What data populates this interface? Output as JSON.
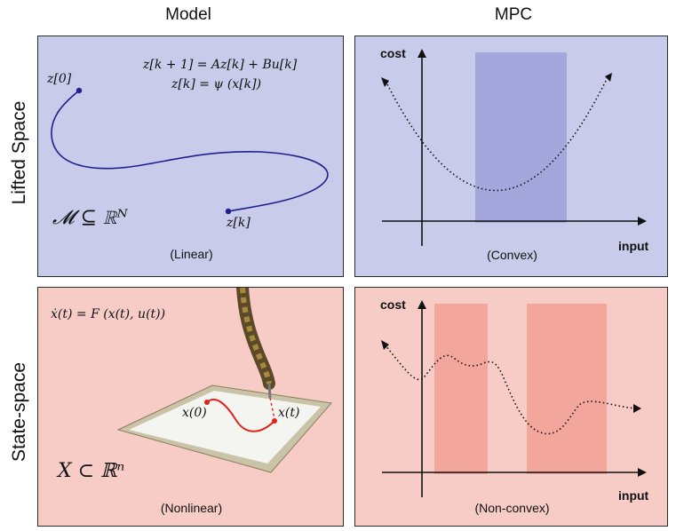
{
  "columns": {
    "model": "Model",
    "mpc": "MPC"
  },
  "rows": {
    "lifted": "Lifted Space",
    "state": "State-space"
  },
  "lifted_model": {
    "eq1": "z[k + 1] = Az[k] + Bu[k]",
    "eq2": "z[k] = ψ (x[k])",
    "start_label": "z[0]",
    "end_label": "z[k]",
    "set": "𝓜 ⊆ ℝᴺ",
    "caption": "(Linear)"
  },
  "lifted_mpc": {
    "y_label": "cost",
    "x_label": "input",
    "caption": "(Convex)"
  },
  "state_model": {
    "eq": "ẋ(t) = F (x(t), u(t))",
    "start_label": "x(0)",
    "end_label": "x(t)",
    "set": "X ⊂ ℝⁿ",
    "caption": "(Nonlinear)"
  },
  "state_mpc": {
    "y_label": "cost",
    "x_label": "input",
    "caption": "(Non-convex)"
  },
  "colors": {
    "blue_panel": "#c9cbea",
    "blue_region": "#a3a7dc",
    "blue_curve": "#1f1f8f",
    "red_panel": "#f7ccc6",
    "red_region": "#f2a69c",
    "red_curve": "#e0231b"
  }
}
